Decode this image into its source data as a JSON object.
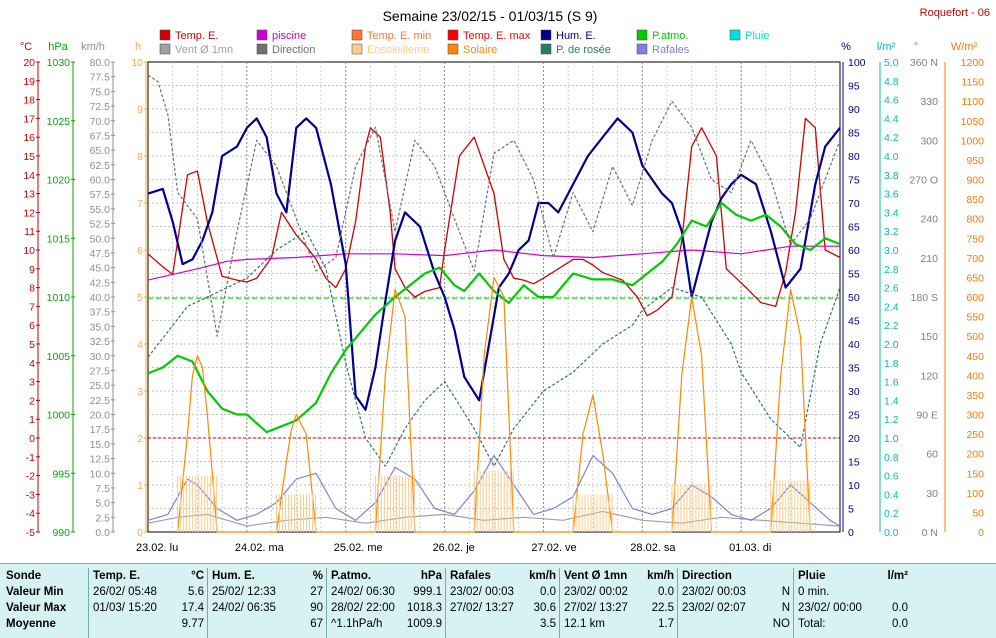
{
  "header": {
    "title": "Semaine 23/02/15 - 01/03/15 (S 9)",
    "station": "Roquefort - 06"
  },
  "legend": [
    {
      "label": "Temp. E.",
      "color": "#d00000"
    },
    {
      "label": "piscine",
      "color": "#d000d0"
    },
    {
      "label": "Temp. E. min",
      "color": "#ff7733"
    },
    {
      "label": "Temp. E. max",
      "color": "#ff0000"
    },
    {
      "label": "Hum. E.",
      "color": "#000090"
    },
    {
      "label": "P.atmo.",
      "color": "#00cc00"
    },
    {
      "label": "Pluie",
      "color": "#00e0e0"
    },
    {
      "label": "Vent Ø 1mn",
      "color": "#a0a0a0"
    },
    {
      "label": "Direction",
      "color": "#707070"
    },
    {
      "label": "Ensoleilleme",
      "color": "#ffcc88"
    },
    {
      "label": "Solaire",
      "color": "#ff8800"
    },
    {
      "label": "P. de rosée",
      "color": "#2a7a6a"
    },
    {
      "label": "Rafales",
      "color": "#8080e0"
    }
  ],
  "axes": {
    "temp": {
      "unit": "°C",
      "min": -5,
      "max": 20,
      "step": 1,
      "color": "#d00000"
    },
    "press": {
      "unit": "hPa",
      "min": 990,
      "max": 1030,
      "step": 5,
      "color": "#00aa00"
    },
    "wind": {
      "unit": "km/h",
      "min": 0,
      "max": 80,
      "step": 2.5,
      "color": "#909090"
    },
    "sun": {
      "unit": "h",
      "min": 0,
      "max": 10,
      "step": 1,
      "color": "#ffaa44"
    },
    "hum": {
      "unit": "%",
      "min": 0,
      "max": 100,
      "step": 5,
      "color": "#000090"
    },
    "rain": {
      "unit": "l/m²",
      "min": 0,
      "max": 5,
      "step": 0.2,
      "color": "#00bbbb"
    },
    "dir": {
      "unit": "°",
      "ticks": [
        "0 N",
        "30",
        "60",
        "90 E",
        "120",
        "150",
        "180 S",
        "210",
        "240",
        "270 O",
        "300",
        "330",
        "360 N"
      ],
      "color": "#808080"
    },
    "solar": {
      "unit": "W/m²",
      "min": 0,
      "max": 1200,
      "step": 50,
      "color": "#ff7700"
    }
  },
  "days": [
    "23.02.  lu",
    "24.02.  ma",
    "25.02.  me",
    "26.02.  je",
    "27.02.  ve",
    "28.02.  sa",
    "01.03.  di"
  ],
  "chart_data": {
    "type": "line",
    "x_unit": "days since 23.02",
    "reference_lines": {
      "freezing_temp": 0,
      "mean_pressure_hPa": 1009.9
    },
    "series": [
      {
        "name": "Temp. E.",
        "axis": "temp",
        "color": "#d00000",
        "x": [
          0,
          0.15,
          0.25,
          0.4,
          0.5,
          0.6,
          0.75,
          0.9,
          1.0,
          1.1,
          1.25,
          1.35,
          1.5,
          1.6,
          1.7,
          1.8,
          1.9,
          2.0,
          2.1,
          2.2,
          2.25,
          2.35,
          2.45,
          2.5,
          2.6,
          2.7,
          2.8,
          2.95,
          3.0,
          3.15,
          3.3,
          3.5,
          3.6,
          3.7,
          3.8,
          3.9,
          4.0,
          4.15,
          4.3,
          4.4,
          4.5,
          4.6,
          4.7,
          4.8,
          4.95,
          5.05,
          5.15,
          5.3,
          5.4,
          5.5,
          5.6,
          5.75,
          5.85,
          5.95,
          6.05,
          6.2,
          6.35,
          6.45,
          6.55,
          6.65,
          6.75,
          6.85,
          7.0
        ],
        "values": [
          9.8,
          9.1,
          8.7,
          14.0,
          14.2,
          11.5,
          8.6,
          8.4,
          8.3,
          8.5,
          9.6,
          12.0,
          10.8,
          10.2,
          9.5,
          8.5,
          8.0,
          9.0,
          11.5,
          15.5,
          16.5,
          16.0,
          12.0,
          9.0,
          8.0,
          7.5,
          7.8,
          8.0,
          10.0,
          15.0,
          16.0,
          13.0,
          9.5,
          8.5,
          8.4,
          8.2,
          8.5,
          9.0,
          9.5,
          9.5,
          9.2,
          8.8,
          8.6,
          8.4,
          7.5,
          6.5,
          6.8,
          7.5,
          10.5,
          15.5,
          16.5,
          15.0,
          9.0,
          8.5,
          8.0,
          7.2,
          7.0,
          8.8,
          12.0,
          17.0,
          16.5,
          10.0,
          9.6
        ]
      },
      {
        "name": "piscine",
        "axis": "temp",
        "color": "#d000d0",
        "x": [
          0,
          0.5,
          0.8,
          1.0,
          1.5,
          2.0,
          2.5,
          3.0,
          3.5,
          4.0,
          4.5,
          5.0,
          5.5,
          6.0,
          6.5,
          7.0
        ],
        "values": [
          8.4,
          9.0,
          9.4,
          9.5,
          9.6,
          9.8,
          9.8,
          9.7,
          10.0,
          9.7,
          9.6,
          9.8,
          10.0,
          9.8,
          10.2,
          10.2
        ]
      },
      {
        "name": "Hum. E.",
        "axis": "hum",
        "color": "#000090",
        "x": [
          0,
          0.15,
          0.25,
          0.35,
          0.45,
          0.55,
          0.65,
          0.75,
          0.9,
          1.0,
          1.1,
          1.2,
          1.3,
          1.4,
          1.5,
          1.6,
          1.7,
          1.85,
          2.0,
          2.1,
          2.2,
          2.3,
          2.4,
          2.5,
          2.6,
          2.75,
          2.9,
          3.0,
          3.1,
          3.2,
          3.35,
          3.45,
          3.55,
          3.65,
          3.75,
          3.85,
          3.95,
          4.05,
          4.15,
          4.3,
          4.45,
          4.6,
          4.75,
          4.9,
          5.0,
          5.1,
          5.2,
          5.3,
          5.4,
          5.5,
          5.6,
          5.7,
          5.8,
          5.9,
          6.0,
          6.15,
          6.3,
          6.45,
          6.6,
          6.75,
          6.85,
          7.0
        ],
        "values": [
          72,
          73,
          66,
          57,
          58,
          62,
          68,
          80,
          82,
          86,
          88,
          84,
          72,
          68,
          86,
          88,
          86,
          74,
          57,
          29,
          26,
          35,
          49,
          62,
          68,
          65,
          55,
          50,
          43,
          33,
          28,
          40,
          52,
          55,
          60,
          62,
          70,
          70,
          68,
          74,
          80,
          84,
          88,
          85,
          78,
          75,
          72,
          70,
          64,
          50,
          58,
          66,
          71,
          74,
          76,
          74,
          64,
          52,
          56,
          74,
          82,
          86
        ]
      },
      {
        "name": "P.atmo.",
        "axis": "press",
        "temp_units": false,
        "color": "#00cc00",
        "x": [
          0,
          0.15,
          0.3,
          0.45,
          0.6,
          0.75,
          0.9,
          1.0,
          1.2,
          1.35,
          1.5,
          1.7,
          1.85,
          2.0,
          2.15,
          2.3,
          2.5,
          2.65,
          2.8,
          2.95,
          3.1,
          3.2,
          3.35,
          3.5,
          3.65,
          3.8,
          3.95,
          4.1,
          4.3,
          4.5,
          4.7,
          4.9,
          5.05,
          5.2,
          5.35,
          5.5,
          5.65,
          5.8,
          5.95,
          6.1,
          6.25,
          6.4,
          6.55,
          6.7,
          6.85,
          7.0
        ],
        "values": [
          1003.5,
          1004.0,
          1005.0,
          1004.5,
          1002.0,
          1000.5,
          1000.0,
          1000.0,
          998.5,
          999.0,
          999.5,
          1001.0,
          1003.5,
          1005.5,
          1007.0,
          1008.5,
          1010.0,
          1011.0,
          1012.0,
          1012.5,
          1011.0,
          1010.5,
          1012.0,
          1010.5,
          1009.5,
          1011.0,
          1010.0,
          1010.0,
          1012.0,
          1011.5,
          1011.5,
          1011.0,
          1012.0,
          1013.0,
          1014.5,
          1016.5,
          1016.0,
          1018.0,
          1017.0,
          1016.5,
          1017.0,
          1016.0,
          1014.5,
          1014.0,
          1015.0,
          1014.5
        ]
      },
      {
        "name": "P. de rosée",
        "axis": "temp",
        "color": "#2a7a6a",
        "dashed": true,
        "x": [
          0,
          0.4,
          0.8,
          1.0,
          1.3,
          1.6,
          1.8,
          2.0,
          2.2,
          2.4,
          2.6,
          2.8,
          3.0,
          3.3,
          3.5,
          3.7,
          4.0,
          4.3,
          4.6,
          4.9,
          5.0,
          5.3,
          5.6,
          5.9,
          6.0,
          6.3,
          6.6,
          6.8,
          7.0
        ],
        "values": [
          4.3,
          7.0,
          8.0,
          8.5,
          10.0,
          11.0,
          9.0,
          4.0,
          0,
          -1.5,
          0.5,
          2.0,
          3.0,
          0.5,
          -1.5,
          0.5,
          2.5,
          3.5,
          5.0,
          6.0,
          6.8,
          8.0,
          7.5,
          5.0,
          3.5,
          1.0,
          -0.5,
          5.0,
          8.0
        ]
      },
      {
        "name": "Vent Ø 1mn",
        "axis": "wind",
        "color": "#a0a0a0",
        "x": [
          0,
          0.3,
          0.6,
          1.0,
          1.4,
          1.8,
          2.2,
          2.6,
          3.0,
          3.4,
          3.8,
          4.2,
          4.6,
          5.0,
          5.4,
          5.8,
          6.2,
          6.6,
          7.0
        ],
        "values": [
          1.5,
          2.5,
          3.0,
          1.0,
          2.0,
          2.5,
          1.5,
          2.5,
          3.0,
          2.0,
          2.5,
          2.0,
          3.5,
          2.0,
          1.5,
          2.5,
          2.0,
          1.5,
          1.0
        ]
      },
      {
        "name": "Rafales",
        "axis": "wind",
        "color": "#8080e0",
        "x": [
          0,
          0.2,
          0.4,
          0.5,
          0.7,
          0.9,
          1.1,
          1.3,
          1.5,
          1.7,
          1.9,
          2.1,
          2.3,
          2.5,
          2.7,
          2.9,
          3.1,
          3.3,
          3.5,
          3.7,
          3.9,
          4.1,
          4.3,
          4.5,
          4.7,
          4.9,
          5.1,
          5.3,
          5.5,
          5.7,
          5.9,
          6.1,
          6.3,
          6.5,
          6.7,
          6.9,
          7.0
        ],
        "values": [
          2,
          3,
          9,
          8,
          4,
          2,
          3,
          5,
          9,
          10,
          4,
          2,
          5,
          11,
          9,
          4,
          3,
          7,
          13,
          8,
          3,
          4,
          6,
          13,
          10,
          4,
          3,
          4,
          8,
          6,
          3,
          2,
          4,
          8,
          5,
          2,
          1
        ]
      },
      {
        "name": "Direction",
        "axis": "dir",
        "color": "#707070",
        "dashed": true,
        "x": [
          0,
          0.1,
          0.2,
          0.3,
          0.5,
          0.7,
          0.9,
          1.1,
          1.3,
          1.5,
          1.7,
          1.9,
          2.1,
          2.3,
          2.5,
          2.7,
          2.9,
          3.1,
          3.3,
          3.5,
          3.7,
          3.9,
          4.1,
          4.3,
          4.5,
          4.7,
          4.9,
          5.1,
          5.3,
          5.5,
          5.7,
          5.9,
          6.1,
          6.3,
          6.5,
          6.7,
          6.9,
          7.0
        ],
        "values": [
          350,
          345,
          320,
          260,
          240,
          150,
          230,
          300,
          280,
          240,
          200,
          210,
          280,
          310,
          230,
          300,
          280,
          240,
          200,
          290,
          300,
          270,
          210,
          260,
          230,
          280,
          250,
          300,
          330,
          310,
          270,
          260,
          300,
          270,
          220,
          240,
          280,
          300
        ]
      },
      {
        "name": "Solaire",
        "axis": "solar",
        "color": "#ff8800",
        "x": [
          0.3,
          0.4,
          0.45,
          0.5,
          0.55,
          0.6,
          0.7,
          1.3,
          1.4,
          1.45,
          1.5,
          1.6,
          1.7,
          2.3,
          2.4,
          2.5,
          2.6,
          2.7,
          3.3,
          3.4,
          3.5,
          3.6,
          3.7,
          4.3,
          4.4,
          4.5,
          4.6,
          4.7,
          5.3,
          5.4,
          5.5,
          5.6,
          5.7,
          6.3,
          6.4,
          6.5,
          6.6,
          6.7
        ],
        "values": [
          0,
          250,
          400,
          450,
          420,
          300,
          0,
          0,
          180,
          260,
          300,
          250,
          0,
          0,
          400,
          620,
          550,
          0,
          0,
          450,
          650,
          600,
          0,
          0,
          250,
          350,
          200,
          0,
          0,
          400,
          600,
          450,
          0,
          0,
          400,
          620,
          500,
          0
        ]
      },
      {
        "name": "Ensoleilleme",
        "axis": "sun",
        "color": "#ffcc88",
        "x": [
          0.5,
          1.5,
          2.5,
          3.5,
          4.5,
          5.5,
          6.5
        ],
        "values": [
          1.2,
          0.8,
          1.2,
          1.3,
          0.8,
          1.0,
          1.1
        ]
      }
    ]
  },
  "summary": {
    "sonde": {
      "label": "Sonde",
      "min": "Valeur Min",
      "max": "Valeur Max",
      "avg": "Moyenne"
    },
    "temp": {
      "label": "Temp. E.",
      "unit": "°C",
      "min_date": "26/02/  05:48",
      "min": "5.6",
      "max_date": "01/03/  15:20",
      "max": "17.4",
      "avg": "9.77"
    },
    "hum": {
      "label": "Hum. E.",
      "unit": "%",
      "min_date": "25/02/  12:33",
      "min": "27",
      "max_date": "24/02/  06:35",
      "max": "90",
      "avg": "67"
    },
    "press": {
      "label": "P.atmo.",
      "unit": "hPa",
      "min_date": "24/02/  06:30",
      "min": "999.1",
      "max_date": "28/02/  22:00",
      "max": "1018.3",
      "trend": "^1.1hPa/h",
      "avg": "1009.9"
    },
    "gust": {
      "label": "Rafales",
      "unit": "km/h",
      "min_date": "23/02/  00:03",
      "min": "0.0",
      "max_date": "27/02/  13:27",
      "max": "30.6",
      "avg": "3.5"
    },
    "wind": {
      "label": "Vent Ø 1mn",
      "unit": "km/h",
      "min_date": "23/02/  00:02",
      "min": "0.0",
      "max_date": "27/02/  13:27",
      "max": "22.5",
      "dist": "12.1 km",
      "avg": "1.7"
    },
    "dir": {
      "label": "Direction",
      "min_date": "23/02/  00:03",
      "min": "N",
      "max_date": "23/02/  02:07",
      "max": "N",
      "avg": "NO"
    },
    "rain": {
      "label": "Pluie",
      "unit": "l/m²",
      "min_date": "0 min.",
      "max_date": "23/02/  00:00",
      "max": "0.0",
      "total_label": "Total:",
      "total": "0.0"
    }
  }
}
